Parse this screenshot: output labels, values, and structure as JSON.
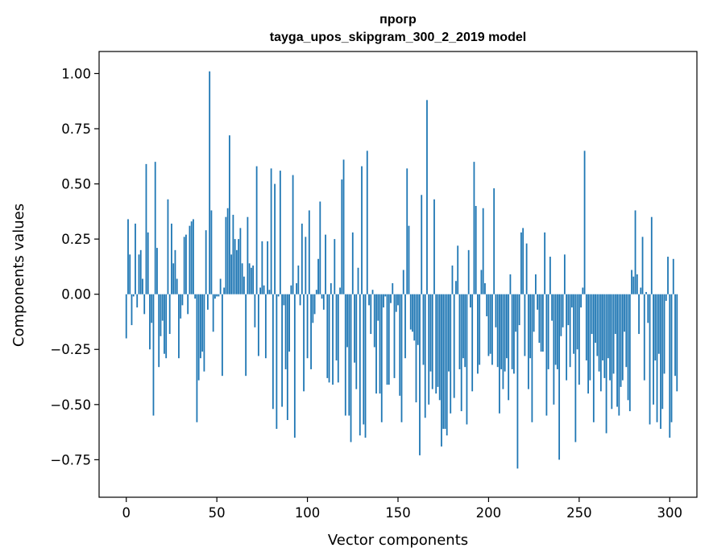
{
  "chart_data": {
    "type": "bar",
    "title": "прогр",
    "subtitle": "tayga_upos_skipgram_300_2_2019 model",
    "xlabel": "Vector components",
    "ylabel": "Components values",
    "xlim": [
      -15,
      315
    ],
    "ylim": [
      -0.92,
      1.1
    ],
    "xticks": [
      0,
      50,
      100,
      150,
      200,
      250,
      300
    ],
    "yticks": [
      -0.75,
      -0.5,
      -0.25,
      0.0,
      0.25,
      0.5,
      0.75,
      1.0
    ],
    "xtick_labels": [
      "0",
      "50",
      "100",
      "150",
      "200",
      "250",
      "300"
    ],
    "ytick_labels": [
      "−0.75",
      "−0.50",
      "−0.25",
      "0.00",
      "0.25",
      "0.50",
      "0.75",
      "1.00"
    ],
    "bar_color": "#1f77b4",
    "values": [
      -0.2,
      0.34,
      0.18,
      -0.14,
      -0.01,
      0.32,
      -0.06,
      0.18,
      0.2,
      0.07,
      -0.09,
      0.59,
      0.28,
      -0.25,
      -0.13,
      -0.55,
      0.6,
      0.21,
      -0.33,
      -0.19,
      -0.12,
      -0.27,
      -0.29,
      0.43,
      -0.18,
      0.32,
      0.14,
      0.2,
      0.07,
      -0.29,
      -0.11,
      -0.05,
      0.26,
      0.27,
      -0.09,
      0.31,
      0.33,
      0.34,
      -0.02,
      -0.58,
      -0.39,
      -0.29,
      -0.26,
      -0.35,
      0.29,
      -0.07,
      1.01,
      0.38,
      -0.17,
      -0.02,
      -0.01,
      -0.01,
      0.07,
      -0.37,
      0.03,
      0.35,
      0.39,
      0.72,
      0.18,
      0.36,
      0.25,
      0.2,
      0.25,
      0.3,
      0.14,
      0.08,
      -0.37,
      0.35,
      0.14,
      0.12,
      0.13,
      -0.15,
      0.58,
      -0.28,
      0.03,
      0.24,
      0.04,
      -0.29,
      0.24,
      0.02,
      0.57,
      -0.52,
      0.5,
      -0.61,
      -0.01,
      0.56,
      -0.51,
      -0.05,
      -0.34,
      -0.57,
      -0.26,
      0.04,
      0.54,
      -0.65,
      0.05,
      0.13,
      -0.05,
      0.32,
      -0.44,
      0.26,
      -0.29,
      0.38,
      -0.34,
      -0.13,
      -0.09,
      0.02,
      0.16,
      0.42,
      -0.02,
      -0.07,
      0.27,
      -0.38,
      -0.4,
      0.05,
      -0.41,
      0.25,
      -0.3,
      -0.4,
      0.03,
      0.52,
      0.61,
      -0.55,
      -0.24,
      -0.55,
      -0.67,
      0.28,
      -0.31,
      -0.43,
      0.12,
      -0.64,
      0.58,
      -0.59,
      -0.65,
      0.65,
      -0.05,
      -0.18,
      0.02,
      -0.24,
      -0.45,
      -0.12,
      -0.45,
      -0.58,
      -0.06,
      -0.01,
      -0.41,
      -0.41,
      -0.04,
      0.05,
      -0.38,
      -0.08,
      -0.05,
      -0.46,
      -0.58,
      0.11,
      -0.29,
      0.57,
      0.31,
      -0.16,
      -0.17,
      -0.21,
      -0.49,
      -0.23,
      -0.73,
      0.45,
      -0.32,
      -0.56,
      0.88,
      -0.5,
      -0.35,
      -0.43,
      0.43,
      -0.45,
      -0.42,
      -0.48,
      -0.69,
      -0.61,
      -0.61,
      -0.64,
      -0.35,
      -0.54,
      0.13,
      -0.47,
      0.06,
      0.22,
      -0.34,
      -0.53,
      -0.29,
      -0.33,
      -0.59,
      0.2,
      -0.06,
      -0.44,
      0.6,
      0.4,
      -0.36,
      -0.32,
      0.11,
      0.39,
      0.05,
      -0.1,
      -0.28,
      -0.27,
      -0.32,
      0.48,
      -0.15,
      -0.33,
      -0.54,
      -0.34,
      -0.43,
      -0.35,
      -0.29,
      -0.48,
      0.09,
      -0.34,
      -0.36,
      -0.17,
      -0.79,
      -0.14,
      0.28,
      0.3,
      -0.28,
      0.23,
      -0.43,
      -0.29,
      -0.58,
      -0.17,
      0.09,
      -0.07,
      -0.22,
      -0.26,
      -0.26,
      0.28,
      -0.55,
      -0.34,
      0.17,
      -0.12,
      -0.5,
      -0.32,
      -0.34,
      -0.75,
      -0.19,
      -0.15,
      0.18,
      -0.39,
      -0.14,
      -0.33,
      -0.06,
      -0.27,
      -0.67,
      -0.25,
      -0.41,
      -0.06,
      0.03,
      0.65,
      -0.3,
      -0.45,
      -0.39,
      -0.18,
      -0.58,
      -0.22,
      -0.28,
      -0.35,
      -0.44,
      -0.3,
      -0.38,
      -0.63,
      -0.29,
      -0.39,
      -0.52,
      -0.36,
      -0.18,
      -0.51,
      -0.55,
      -0.42,
      -0.39,
      -0.17,
      -0.33,
      -0.48,
      -0.53,
      0.11,
      0.08,
      0.38,
      0.09,
      -0.18,
      0.03,
      0.26,
      -0.39,
      0.01,
      -0.13,
      -0.59,
      0.35,
      -0.5,
      -0.3,
      -0.58,
      -0.27,
      -0.61,
      -0.52,
      -0.36,
      -0.03,
      0.17,
      -0.65,
      -0.58,
      0.16,
      -0.37,
      -0.44
    ]
  }
}
